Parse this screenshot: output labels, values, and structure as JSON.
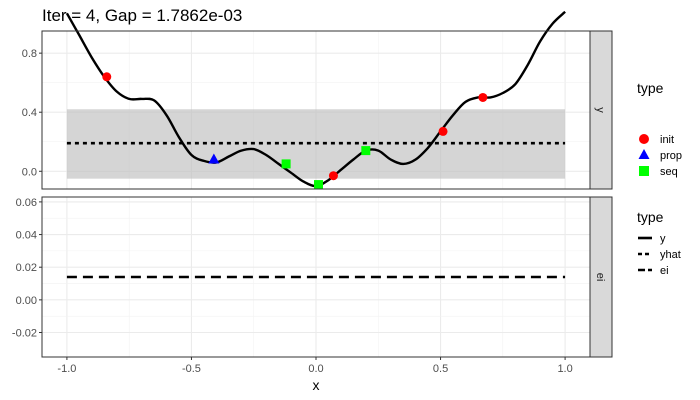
{
  "chart_data": {
    "type": "line",
    "title": "Iter = 4, Gap = 1.7862e-03",
    "xlabel": "x",
    "xlim": [
      -1.1,
      1.1
    ],
    "x_ticks": [
      "-1.0",
      "-0.5",
      "0.0",
      "0.5",
      "1.0"
    ],
    "x_tick_values": [
      -1.0,
      -0.5,
      0.0,
      0.5,
      1.0
    ],
    "grid": true,
    "colors": {
      "init": "#ff0000",
      "prop": "#0000ff",
      "seq": "#00ff00",
      "band": "#bebebe",
      "strip_bg": "#d9d9d9"
    },
    "panels": [
      {
        "strip_label": "y",
        "ylim": [
          -0.12,
          0.95
        ],
        "y_ticks": [
          "0.0",
          "0.4",
          "0.8"
        ],
        "y_tick_values": [
          0.0,
          0.4,
          0.8
        ],
        "band": {
          "x0": -1.0,
          "x1": 1.0,
          "lower": -0.05,
          "upper": 0.42
        },
        "yhat_level": 0.19,
        "curve_x": [
          -1.0,
          -0.95,
          -0.9,
          -0.85,
          -0.8,
          -0.75,
          -0.7,
          -0.65,
          -0.6,
          -0.55,
          -0.5,
          -0.45,
          -0.4,
          -0.35,
          -0.3,
          -0.25,
          -0.2,
          -0.15,
          -0.1,
          -0.05,
          0.0,
          0.05,
          0.1,
          0.15,
          0.2,
          0.25,
          0.3,
          0.35,
          0.4,
          0.45,
          0.5,
          0.55,
          0.6,
          0.65,
          0.7,
          0.75,
          0.8,
          0.85,
          0.9,
          0.95,
          1.0
        ],
        "curve_y": [
          1.07,
          0.92,
          0.77,
          0.64,
          0.54,
          0.49,
          0.49,
          0.48,
          0.38,
          0.23,
          0.11,
          0.07,
          0.06,
          0.1,
          0.14,
          0.15,
          0.11,
          0.05,
          -0.01,
          -0.07,
          -0.1,
          -0.06,
          0.01,
          0.08,
          0.14,
          0.14,
          0.08,
          0.05,
          0.08,
          0.16,
          0.27,
          0.38,
          0.47,
          0.5,
          0.5,
          0.53,
          0.59,
          0.72,
          0.88,
          1.0,
          1.08
        ],
        "points": [
          {
            "type": "init",
            "x": -0.84,
            "y": 0.64
          },
          {
            "type": "init",
            "x": 0.07,
            "y": -0.03
          },
          {
            "type": "init",
            "x": 0.51,
            "y": 0.27
          },
          {
            "type": "init",
            "x": 0.67,
            "y": 0.5
          },
          {
            "type": "prop",
            "x": -0.41,
            "y": 0.08
          },
          {
            "type": "seq",
            "x": -0.12,
            "y": 0.05
          },
          {
            "type": "seq",
            "x": 0.01,
            "y": -0.09
          },
          {
            "type": "seq",
            "x": 0.2,
            "y": 0.14
          }
        ]
      },
      {
        "strip_label": "ei",
        "ylim": [
          -0.035,
          0.063
        ],
        "y_ticks": [
          "-0.02",
          "0.00",
          "0.02",
          "0.04",
          "0.06"
        ],
        "y_tick_values": [
          -0.02,
          0.0,
          0.02,
          0.04,
          0.06
        ],
        "line": {
          "x0": -1.0,
          "x1": 1.0,
          "y": 0.014
        }
      }
    ],
    "legends": [
      {
        "title": "type",
        "entries": [
          "init",
          "prop",
          "seq"
        ]
      },
      {
        "title": "type",
        "entries": [
          "y",
          "yhat",
          "ei"
        ]
      }
    ]
  }
}
